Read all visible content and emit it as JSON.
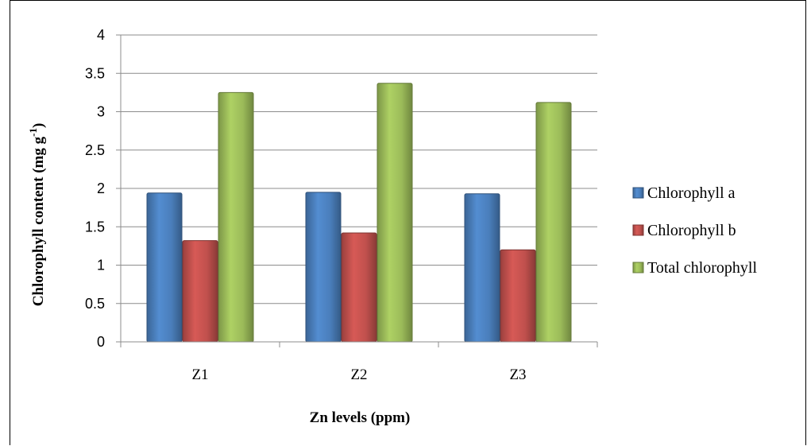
{
  "chart_data": {
    "type": "bar",
    "categories": [
      "Z1",
      "Z2",
      "Z3"
    ],
    "series": [
      {
        "name": "Chlorophyll a",
        "values": [
          1.94,
          1.95,
          1.93
        ],
        "color": "#4a7ebb"
      },
      {
        "name": "Chlorophyll b",
        "values": [
          1.32,
          1.42,
          1.2
        ],
        "color": "#c0504d"
      },
      {
        "name": "Total chlorophyll",
        "values": [
          3.25,
          3.37,
          3.12
        ],
        "color": "#9bbb59"
      }
    ],
    "xlabel": "Zn levels (ppm)",
    "ylabel": "Chlorophyll content   (mg g-1)",
    "ylabel_main": "Chlorophyll content   (mg g",
    "ylabel_sup": "-1",
    "ylabel_close": ")",
    "ylim": [
      0,
      4
    ],
    "yticks": [
      "0",
      "0.5",
      "1",
      "1.5",
      "2",
      "2.5",
      "3",
      "3.5",
      "4"
    ],
    "grid": true,
    "legend_position": "right"
  }
}
